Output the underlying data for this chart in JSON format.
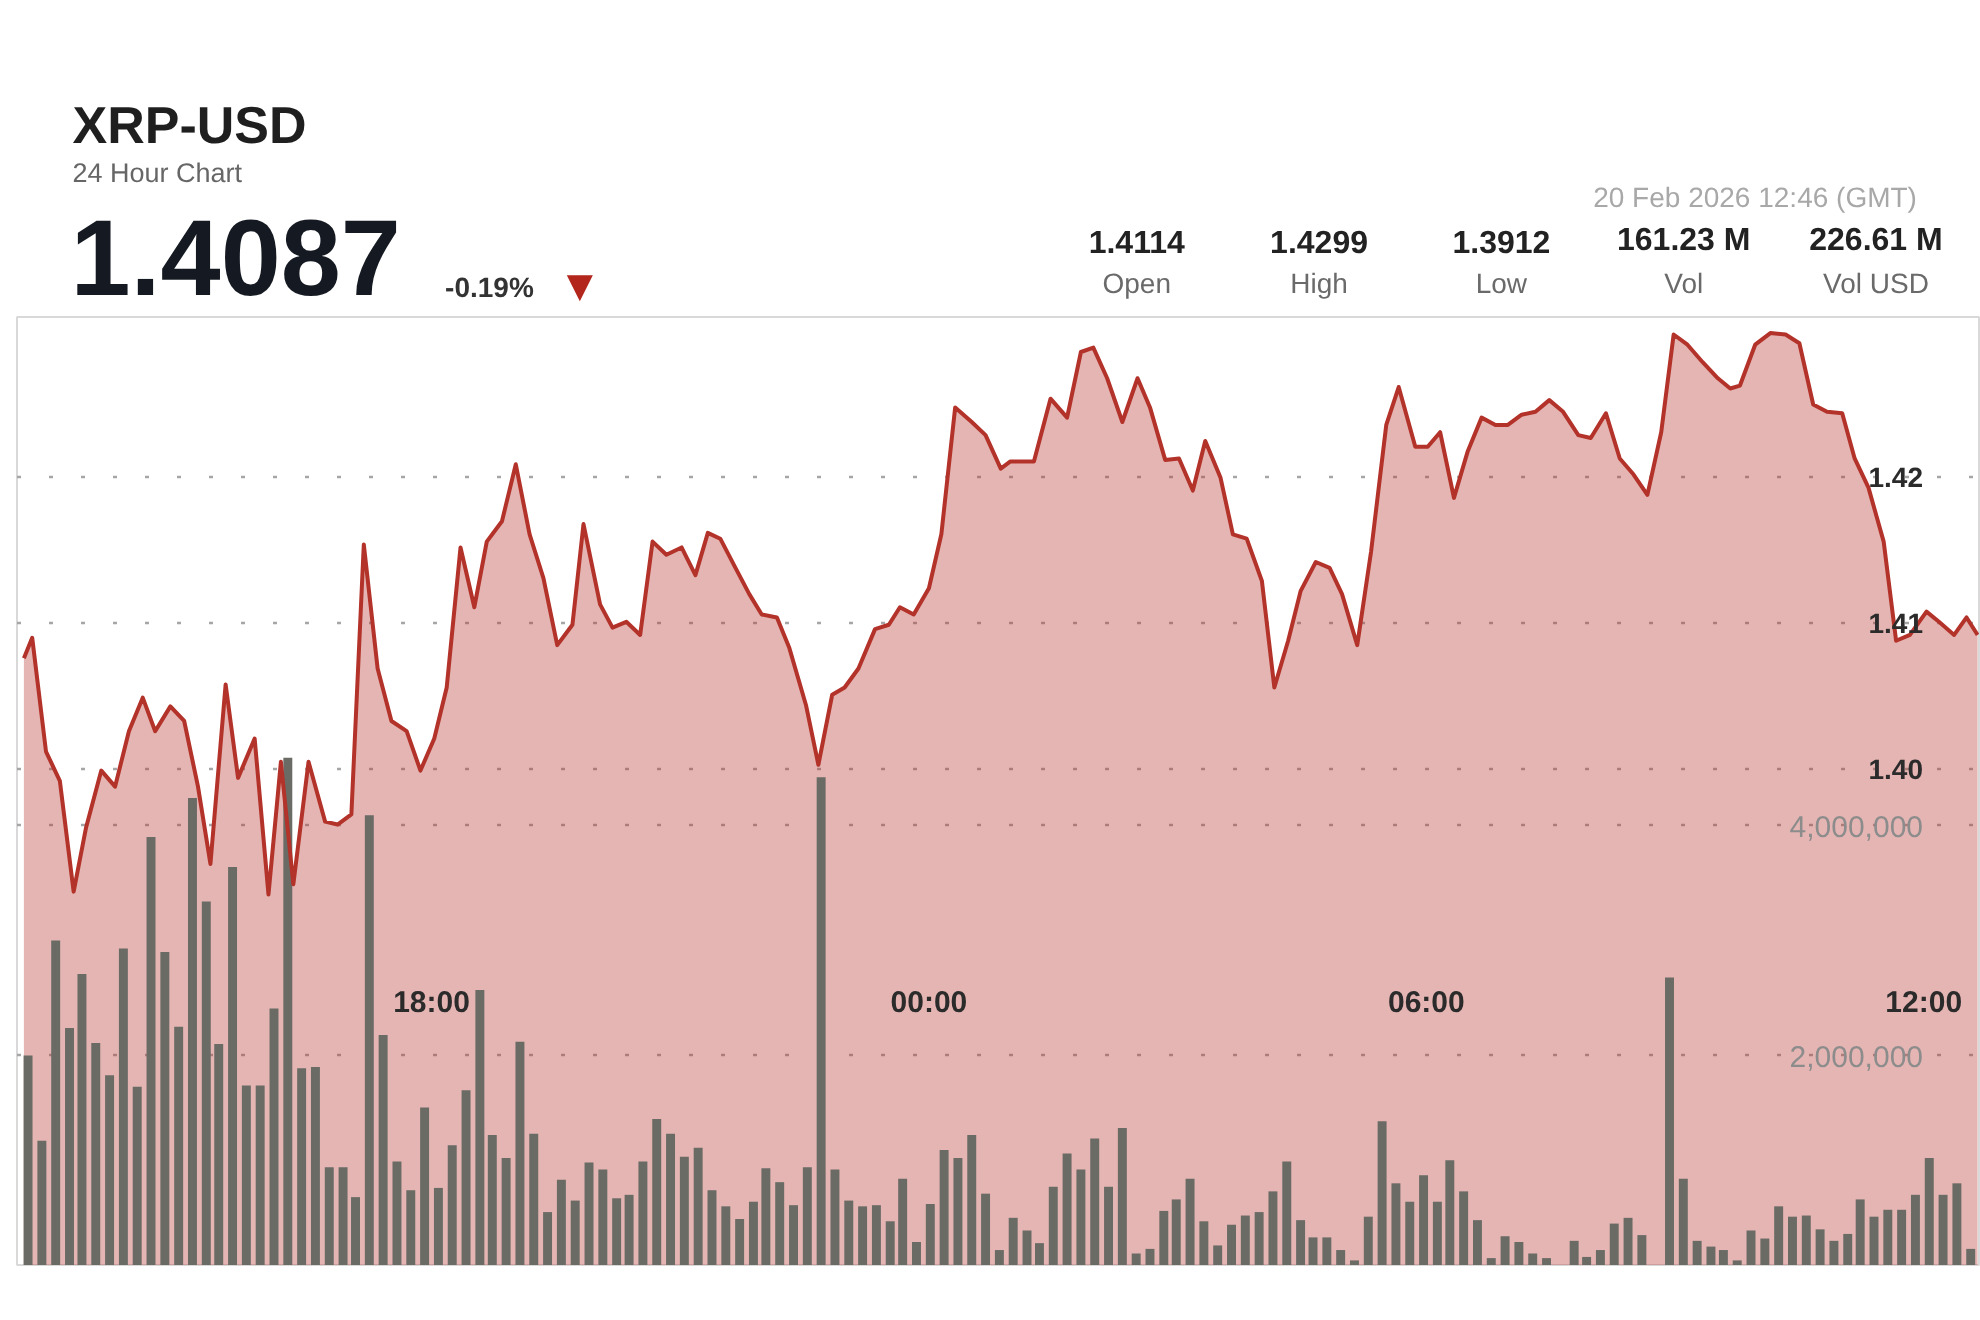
{
  "chart_data": {
    "type": "area",
    "title": "XRP-USD",
    "subtitle": "24 Hour Chart",
    "annotations": [
      "20 Feb 2026 12:46 (GMT)",
      "1.4087",
      "-0.19%",
      "▼",
      "1.4114",
      "Open",
      "1.4299",
      "High",
      "1.3912",
      "Low",
      "161.23 M",
      "Vol",
      "226.61 M",
      "Vol USD"
    ],
    "xlim": [
      "2026-02-19T13:00",
      "2026-02-20T12:40"
    ],
    "xticks": [
      {
        "value": "2026-02-19T18:00",
        "label": "18:00"
      },
      {
        "value": "2026-02-20T00:00",
        "label": "00:00"
      },
      {
        "value": "2026-02-20T06:00",
        "label": "06:00"
      },
      {
        "value": "2026-02-20T12:00",
        "label": "12:00"
      }
    ],
    "ylim": [
      1.366,
      1.431
    ],
    "yticks": [
      {
        "value": 1.4,
        "label": "1.40"
      },
      1.41,
      1.42
    ],
    "y2lim": [
      180000,
      8420000
    ],
    "y2ticks": [
      {
        "value": 2000000,
        "label": "2,000,000"
      },
      {
        "value": 4000000,
        "label": "4,000,000"
      }
    ],
    "grid": "y",
    "series": [
      {
        "color": "#b3322a",
        "x": [
          "2026-02-19T13:05",
          "2026-02-19T13:11",
          "2026-02-19T13:21",
          "2026-02-19T13:31",
          "2026-02-19T13:41",
          "2026-02-19T13:50",
          "2026-02-19T14:01",
          "2026-02-19T14:11",
          "2026-02-19T14:21",
          "2026-02-19T14:31",
          "2026-02-19T14:40",
          "2026-02-19T14:51",
          "2026-02-19T15:01",
          "2026-02-19T15:11",
          "2026-02-19T15:20",
          "2026-02-19T15:31",
          "2026-02-19T15:40",
          "2026-02-19T15:52",
          "2026-02-19T16:02",
          "2026-02-19T16:11",
          "2026-02-19T16:20",
          "2026-02-19T16:31",
          "2026-02-19T16:43",
          "2026-02-19T16:52",
          "2026-02-19T17:02",
          "2026-02-19T17:11",
          "2026-02-19T17:21",
          "2026-02-19T17:31",
          "2026-02-19T17:42",
          "2026-02-19T17:52",
          "2026-02-19T18:02",
          "2026-02-19T18:11",
          "2026-02-19T18:21",
          "2026-02-19T18:31",
          "2026-02-19T18:40",
          "2026-02-19T18:51",
          "2026-02-19T19:01",
          "2026-02-19T19:11",
          "2026-02-19T19:21",
          "2026-02-19T19:31",
          "2026-02-19T19:42",
          "2026-02-19T19:50",
          "2026-02-19T20:02",
          "2026-02-19T20:11",
          "2026-02-19T20:21",
          "2026-02-19T20:31",
          "2026-02-19T20:40",
          "2026-02-19T20:50",
          "2026-02-19T21:01",
          "2026-02-19T21:11",
          "2026-02-19T21:20",
          "2026-02-19T21:29",
          "2026-02-19T21:40",
          "2026-02-19T21:50",
          "2026-02-19T21:59",
          "2026-02-19T22:10",
          "2026-02-19T22:19",
          "2026-02-19T22:31",
          "2026-02-19T22:40",
          "2026-02-19T22:50",
          "2026-02-19T22:59",
          "2026-02-19T23:09",
          "2026-02-19T23:21",
          "2026-02-19T23:31",
          "2026-02-19T23:39",
          "2026-02-19T23:49",
          "2026-02-20T00:00",
          "2026-02-20T00:09",
          "2026-02-20T00:19",
          "2026-02-20T00:31",
          "2026-02-20T00:41",
          "2026-02-20T00:52",
          "2026-02-20T00:59",
          "2026-02-20T01:16",
          "2026-02-20T01:28",
          "2026-02-20T01:40",
          "2026-02-20T01:50",
          "2026-02-20T01:59",
          "2026-02-20T02:09",
          "2026-02-20T02:20",
          "2026-02-20T02:31",
          "2026-02-20T02:40",
          "2026-02-20T02:51",
          "2026-02-20T03:01",
          "2026-02-20T03:11",
          "2026-02-20T03:20",
          "2026-02-20T03:31",
          "2026-02-20T03:40",
          "2026-02-20T03:50",
          "2026-02-20T04:01",
          "2026-02-20T04:10",
          "2026-02-20T04:20",
          "2026-02-20T04:29",
          "2026-02-20T04:40",
          "2026-02-20T04:50",
          "2026-02-20T04:59",
          "2026-02-20T05:10",
          "2026-02-20T05:20",
          "2026-02-20T05:31",
          "2026-02-20T05:40",
          "2026-02-20T05:52",
          "2026-02-20T06:01",
          "2026-02-20T06:10",
          "2026-02-20T06:20",
          "2026-02-20T06:30",
          "2026-02-20T06:40",
          "2026-02-20T06:50",
          "2026-02-20T06:59",
          "2026-02-20T07:09",
          "2026-02-20T07:19",
          "2026-02-20T07:29",
          "2026-02-20T07:39",
          "2026-02-20T07:50",
          "2026-02-20T07:59",
          "2026-02-20T08:10",
          "2026-02-20T08:20",
          "2026-02-20T08:30",
          "2026-02-20T08:40",
          "2026-02-20T08:50",
          "2026-02-20T08:59",
          "2026-02-20T09:09",
          "2026-02-20T09:20",
          "2026-02-20T09:31",
          "2026-02-20T09:40",
          "2026-02-20T09:47",
          "2026-02-20T09:58",
          "2026-02-20T10:09",
          "2026-02-20T10:20",
          "2026-02-20T10:30",
          "2026-02-20T10:40",
          "2026-02-20T10:50",
          "2026-02-20T11:01",
          "2026-02-20T11:10",
          "2026-02-20T11:20",
          "2026-02-20T11:31",
          "2026-02-20T11:40",
          "2026-02-20T11:50",
          "2026-02-20T12:02",
          "2026-02-20T12:11",
          "2026-02-20T12:22",
          "2026-02-20T12:31",
          "2026-02-20T12:39"
        ],
        "values": [
          1.4076,
          1.409,
          1.4012,
          1.3992,
          1.3916,
          1.396,
          1.3999,
          1.3988,
          1.4026,
          1.4049,
          1.4026,
          1.4043,
          1.4033,
          1.3988,
          1.3935,
          1.4058,
          1.3994,
          1.4021,
          1.3914,
          1.4005,
          1.3921,
          1.4005,
          1.3964,
          1.3962,
          1.3969,
          1.4154,
          1.4069,
          1.4033,
          1.4026,
          1.3999,
          1.4021,
          1.4056,
          1.4152,
          1.4111,
          1.4156,
          1.417,
          1.4209,
          1.4161,
          1.4131,
          1.4085,
          1.4099,
          1.4168,
          1.4113,
          1.4097,
          1.4101,
          1.4092,
          1.4156,
          1.4147,
          1.4152,
          1.4133,
          1.4162,
          1.4158,
          1.4138,
          1.412,
          1.4106,
          1.4104,
          1.4083,
          1.4044,
          1.4003,
          1.4051,
          1.4056,
          1.4069,
          1.4096,
          1.4099,
          1.4111,
          1.4106,
          1.4124,
          1.4161,
          1.4248,
          1.4238,
          1.4229,
          1.4206,
          1.4211,
          1.4211,
          1.4254,
          1.4241,
          1.4286,
          1.4289,
          1.4268,
          1.4238,
          1.4268,
          1.4248,
          1.4212,
          1.4213,
          1.4191,
          1.4225,
          1.42,
          1.4161,
          1.4158,
          1.4129,
          1.4056,
          1.4088,
          1.4122,
          1.4142,
          1.4138,
          1.412,
          1.4085,
          1.4149,
          1.4236,
          1.4262,
          1.4221,
          1.4221,
          1.4231,
          1.4186,
          1.4218,
          1.4241,
          1.4236,
          1.4236,
          1.4243,
          1.4245,
          1.4253,
          1.4245,
          1.4229,
          1.4227,
          1.4244,
          1.4213,
          1.4202,
          1.4188,
          1.4231,
          1.4298,
          1.4291,
          1.4279,
          1.4268,
          1.4261,
          1.4263,
          1.4291,
          1.4299,
          1.4298,
          1.4292,
          1.425,
          1.4245,
          1.4244,
          1.4213,
          1.4193,
          1.4156,
          1.4088,
          1.4092,
          1.4108,
          1.4101,
          1.4092,
          1.4104,
          1.4092
        ]
      },
      {
        "type": "bar",
        "axis": "y2",
        "color": "#6b6b66",
        "x": [
          "2026-02-19T13:08",
          "2026-02-19T13:18",
          "2026-02-19T13:28",
          "2026-02-19T13:38",
          "2026-02-19T13:47",
          "2026-02-19T13:57",
          "2026-02-19T14:07",
          "2026-02-19T14:17",
          "2026-02-19T14:27",
          "2026-02-19T14:37",
          "2026-02-19T14:47",
          "2026-02-19T14:57",
          "2026-02-19T15:07",
          "2026-02-19T15:17",
          "2026-02-19T15:26",
          "2026-02-19T15:36",
          "2026-02-19T15:46",
          "2026-02-19T15:56",
          "2026-02-19T16:06",
          "2026-02-19T16:16",
          "2026-02-19T16:26",
          "2026-02-19T16:36",
          "2026-02-19T16:46",
          "2026-02-19T16:56",
          "2026-02-19T17:05",
          "2026-02-19T17:15",
          "2026-02-19T17:25",
          "2026-02-19T17:35",
          "2026-02-19T17:45",
          "2026-02-19T17:55",
          "2026-02-19T18:05",
          "2026-02-19T18:15",
          "2026-02-19T18:25",
          "2026-02-19T18:35",
          "2026-02-19T18:44",
          "2026-02-19T18:54",
          "2026-02-19T19:04",
          "2026-02-19T19:14",
          "2026-02-19T19:24",
          "2026-02-19T19:34",
          "2026-02-19T19:44",
          "2026-02-19T19:54",
          "2026-02-19T20:04",
          "2026-02-19T20:14",
          "2026-02-19T20:23",
          "2026-02-19T20:33",
          "2026-02-19T20:43",
          "2026-02-19T20:53",
          "2026-02-19T21:03",
          "2026-02-19T21:13",
          "2026-02-19T21:23",
          "2026-02-19T21:33",
          "2026-02-19T21:43",
          "2026-02-19T21:53",
          "2026-02-19T22:02",
          "2026-02-19T22:12",
          "2026-02-19T22:22",
          "2026-02-19T22:32",
          "2026-02-19T22:42",
          "2026-02-19T22:52",
          "2026-02-19T23:02",
          "2026-02-19T23:12",
          "2026-02-19T23:22",
          "2026-02-19T23:32",
          "2026-02-19T23:41",
          "2026-02-19T23:51",
          "2026-02-20T00:01",
          "2026-02-20T00:11",
          "2026-02-20T00:21",
          "2026-02-20T00:31",
          "2026-02-20T00:41",
          "2026-02-20T00:51",
          "2026-02-20T01:01",
          "2026-02-20T01:11",
          "2026-02-20T01:20",
          "2026-02-20T01:30",
          "2026-02-20T01:40",
          "2026-02-20T01:50",
          "2026-02-20T02:00",
          "2026-02-20T02:10",
          "2026-02-20T02:20",
          "2026-02-20T02:30",
          "2026-02-20T02:40",
          "2026-02-20T02:50",
          "2026-02-20T02:59",
          "2026-02-20T03:09",
          "2026-02-20T03:19",
          "2026-02-20T03:29",
          "2026-02-20T03:39",
          "2026-02-20T03:49",
          "2026-02-20T03:59",
          "2026-02-20T04:09",
          "2026-02-20T04:19",
          "2026-02-20T04:29",
          "2026-02-20T04:38",
          "2026-02-20T04:48",
          "2026-02-20T04:58",
          "2026-02-20T05:08",
          "2026-02-20T05:18",
          "2026-02-20T05:28",
          "2026-02-20T05:38",
          "2026-02-20T05:48",
          "2026-02-20T05:58",
          "2026-02-20T06:08",
          "2026-02-20T06:17",
          "2026-02-20T06:27",
          "2026-02-20T06:37",
          "2026-02-20T06:47",
          "2026-02-20T06:57",
          "2026-02-20T07:07",
          "2026-02-20T07:17",
          "2026-02-20T07:27",
          "2026-02-20T07:37",
          "2026-02-20T07:47",
          "2026-02-20T07:56",
          "2026-02-20T08:06",
          "2026-02-20T08:16",
          "2026-02-20T08:26",
          "2026-02-20T08:36",
          "2026-02-20T08:46",
          "2026-02-20T08:56",
          "2026-02-20T09:06",
          "2026-02-20T09:16",
          "2026-02-20T09:26",
          "2026-02-20T09:35",
          "2026-02-20T09:45",
          "2026-02-20T09:55",
          "2026-02-20T10:05",
          "2026-02-20T10:15",
          "2026-02-20T10:25",
          "2026-02-20T10:35",
          "2026-02-20T10:45",
          "2026-02-20T10:55",
          "2026-02-20T11:05",
          "2026-02-20T11:14",
          "2026-02-20T11:24",
          "2026-02-20T11:34",
          "2026-02-20T11:44",
          "2026-02-20T11:54",
          "2026-02-20T12:04",
          "2026-02-20T12:14",
          "2026-02-20T12:24",
          "2026-02-20T12:34"
        ],
        "values": [
          2000000,
          1260000,
          3000000,
          2240000,
          2710000,
          2110000,
          1830000,
          2930000,
          1730000,
          3900000,
          2900000,
          2250000,
          4240000,
          3340000,
          2100000,
          3640000,
          1740000,
          1740000,
          2410000,
          4590000,
          1890000,
          1900000,
          1030000,
          1030000,
          770000,
          4090000,
          2180000,
          1080000,
          830000,
          1550000,
          850000,
          1220000,
          1700000,
          2570000,
          1310000,
          1110000,
          2120000,
          1320000,
          640000,
          920000,
          740000,
          1070000,
          1010000,
          760000,
          790000,
          1080000,
          1450000,
          1320000,
          1120000,
          1200000,
          830000,
          690000,
          580000,
          730000,
          1020000,
          900000,
          700000,
          1030000,
          4420000,
          1010000,
          740000,
          690000,
          700000,
          560000,
          930000,
          380000,
          710000,
          1180000,
          1110000,
          1310000,
          800000,
          310000,
          590000,
          480000,
          370000,
          860000,
          1150000,
          1010000,
          1280000,
          860000,
          1370000,
          280000,
          320000,
          650000,
          750000,
          930000,
          560000,
          350000,
          530000,
          610000,
          640000,
          820000,
          1080000,
          570000,
          420000,
          420000,
          310000,
          220000,
          600000,
          1430000,
          890000,
          730000,
          960000,
          730000,
          1090000,
          820000,
          570000,
          240000,
          430000,
          380000,
          280000,
          240000,
          null,
          390000,
          250000,
          310000,
          540000,
          590000,
          440000,
          null,
          2680000,
          930000,
          390000,
          340000,
          310000,
          220000,
          480000,
          410000,
          690000,
          600000,
          610000,
          490000,
          390000,
          450000,
          750000,
          600000,
          660000,
          660000,
          790000,
          1110000,
          790000,
          890000,
          320000
        ]
      }
    ]
  }
}
